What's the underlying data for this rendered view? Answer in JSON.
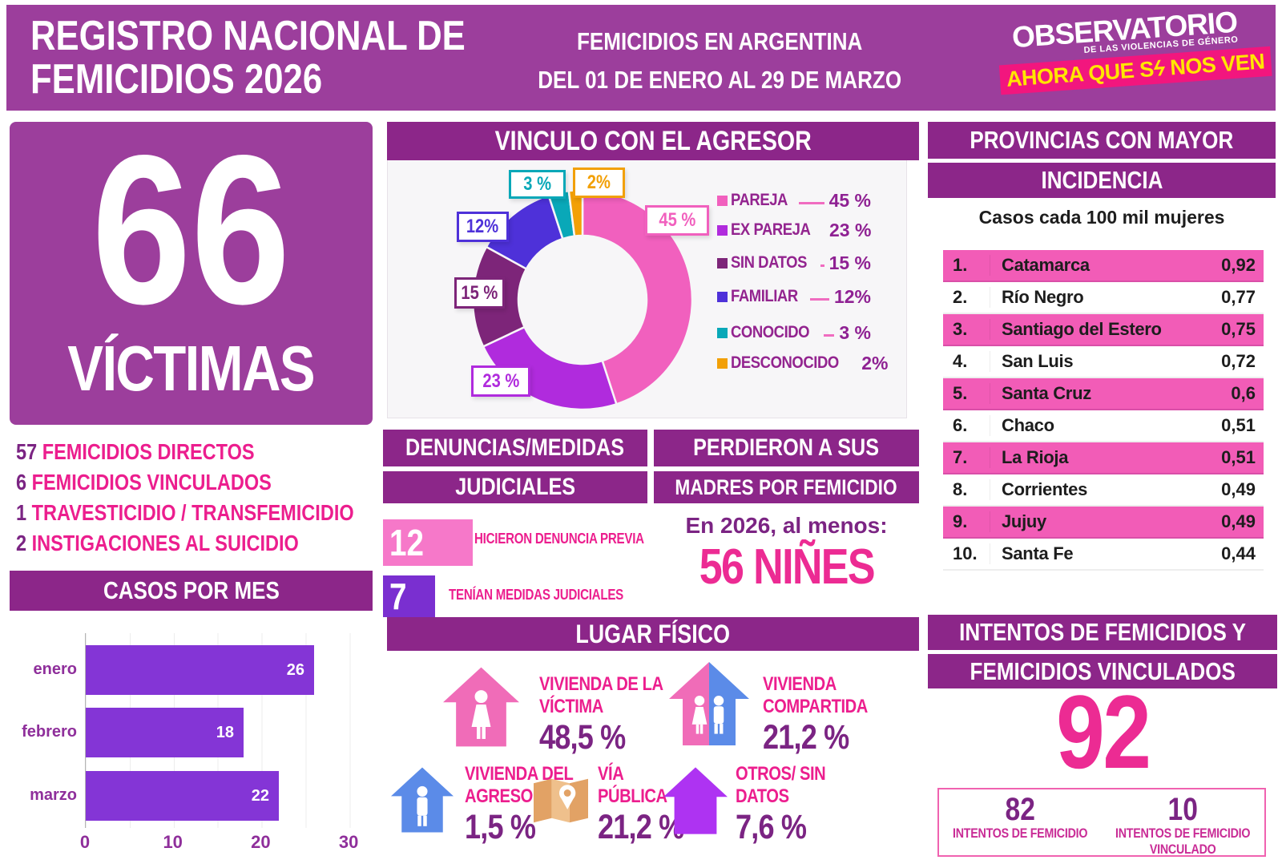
{
  "colors": {
    "header_purple": "#9C3E9C",
    "banner_purple": "#8C2689",
    "hot_pink": "#EC1E8E",
    "deep_purple": "#7B2483",
    "table_pink": "#F25CB7",
    "bar_purple": "#8435D6"
  },
  "header": {
    "title_line1": "REGISTRO NACIONAL DE",
    "title_line2": "FEMICIDIOS 2026",
    "subtitle_line1": "FEMICIDIOS EN ARGENTINA",
    "subtitle_line2": "DEL 01 DE ENERO AL 29 DE MARZO",
    "logo": {
      "name": "OBSERVATORIO",
      "tagline": "DE LAS VIOLENCIAS DE GÉNERO",
      "slogan_pre": "AHORA QUE S",
      "slogan_bolt": "ϟ",
      "slogan_post": " NOS VEN"
    }
  },
  "totals": {
    "victims_number": "66",
    "victims_label": "VÍCTIMAS",
    "breakdown": [
      {
        "num": "57",
        "label": "FEMICIDIOS DIRECTOS"
      },
      {
        "num": "6",
        "label": "FEMICIDIOS VINCULADOS"
      },
      {
        "num": "1",
        "label": "TRAVESTICIDIO / TRANSFEMICIDIO"
      },
      {
        "num": "2",
        "label": "INSTIGACIONES AL SUICIDIO"
      }
    ]
  },
  "casos_por_mes": {
    "title": "CASOS POR MES"
  },
  "vinculo": {
    "title": "VINCULO CON EL AGRESOR"
  },
  "denuncias": {
    "title_line1": "DENUNCIAS/MEDIDAS",
    "title_line2": "JUDICIALES",
    "items": [
      {
        "value": "12",
        "label": "HICIERON DENUNCIA PREVIA",
        "color": "#F678C9"
      },
      {
        "value": "7",
        "label": "TENÍAN MEDIDAS JUDICIALES",
        "color": "#7A2FD0"
      }
    ]
  },
  "madres": {
    "title_line1": "PERDIERON A SUS",
    "title_line2": "MADRES POR FEMICIDIO",
    "lead": "En 2026, al menos:",
    "highlight": "56 NIÑES"
  },
  "provincias": {
    "title_line1": "PROVINCIAS CON MAYOR",
    "title_line2": "INCIDENCIA",
    "subtitle": "Casos cada 100 mil mujeres",
    "rows": [
      {
        "rank": "1.",
        "name": "Catamarca",
        "value": "0,92"
      },
      {
        "rank": "2.",
        "name": "Río Negro",
        "value": "0,77"
      },
      {
        "rank": "3.",
        "name": "Santiago del Estero",
        "value": "0,75"
      },
      {
        "rank": "4.",
        "name": "San Luis",
        "value": "0,72"
      },
      {
        "rank": "5.",
        "name": "Santa Cruz",
        "value": "0,6"
      },
      {
        "rank": "6.",
        "name": "Chaco",
        "value": "0,51"
      },
      {
        "rank": "7.",
        "name": "La Rioja",
        "value": "0,51"
      },
      {
        "rank": "8.",
        "name": "Corrientes",
        "value": "0,49"
      },
      {
        "rank": "9.",
        "name": "Jujuy",
        "value": "0,49"
      },
      {
        "rank": "10.",
        "name": "Santa Fe",
        "value": "0,44"
      }
    ]
  },
  "lugar": {
    "title": "LUGAR FÍSICO",
    "items": [
      {
        "label_lines": [
          "VIVIENDA DE LA",
          "VÍCTIMA"
        ],
        "value": "48,5 %",
        "icon": "house-woman-icon",
        "color": "#F06CB8"
      },
      {
        "label_lines": [
          "VIVIENDA",
          "COMPARTIDA"
        ],
        "value": "21,2 %",
        "icon": "house-couple-icon",
        "color": "#F06CB8",
        "color2": "#5B8BE8"
      },
      {
        "label_lines": [
          "VIVIENDA DEL",
          "AGRESOR"
        ],
        "value": "1,5 %",
        "icon": "house-man-icon",
        "color": "#5B8BE8"
      },
      {
        "label_lines": [
          "VÍA",
          "PÚBLICA"
        ],
        "value": "21,2 %",
        "icon": "map-icon",
        "color": "#E2A265"
      },
      {
        "label_lines": [
          "OTROS/ SIN",
          "DATOS"
        ],
        "value": "7,6 %",
        "icon": "house-icon",
        "color": "#AE33F2"
      }
    ]
  },
  "intentos": {
    "title_line1": "INTENTOS DE FEMICIDIOS Y",
    "title_line2": "FEMICIDIOS VINCULADOS",
    "total": "92",
    "breakdown": [
      {
        "value": "82",
        "label_lines": [
          "INTENTOS DE FEMICIDIO"
        ]
      },
      {
        "value": "10",
        "label_lines": [
          "INTENTOS DE FEMICIDIO",
          "VINCULADO"
        ]
      }
    ]
  },
  "chart_data": [
    {
      "id": "vinculo_donut",
      "type": "pie",
      "title": "VINCULO CON EL AGRESOR",
      "hole": 0.58,
      "legend_position": "right",
      "slices": [
        {
          "label": "PAREJA",
          "value": 45,
          "display": "45 %",
          "color": "#F160BE"
        },
        {
          "label": "EX PAREJA",
          "value": 23,
          "display": "23 %",
          "color": "#B02BDD"
        },
        {
          "label": "SIN DATOS",
          "value": 15,
          "display": "15 %",
          "color": "#7D2579"
        },
        {
          "label": "FAMILIAR",
          "value": 12,
          "display": "12%",
          "color": "#4E31D9"
        },
        {
          "label": "CONOCIDO",
          "value": 3,
          "display": "3 %",
          "color": "#09A8B8"
        },
        {
          "label": "DESCONOCIDO",
          "value": 2,
          "display": "2%",
          "color": "#F2A007"
        }
      ]
    },
    {
      "id": "casos_por_mes_bars",
      "type": "bar",
      "orientation": "horizontal",
      "title": "CASOS POR MES",
      "categories": [
        "enero",
        "febrero",
        "marzo"
      ],
      "values": [
        26,
        18,
        22
      ],
      "xlim": [
        0,
        31
      ],
      "xticks": [
        0,
        10,
        20,
        30
      ],
      "grid": true,
      "bar_color": "#8435D6"
    }
  ]
}
